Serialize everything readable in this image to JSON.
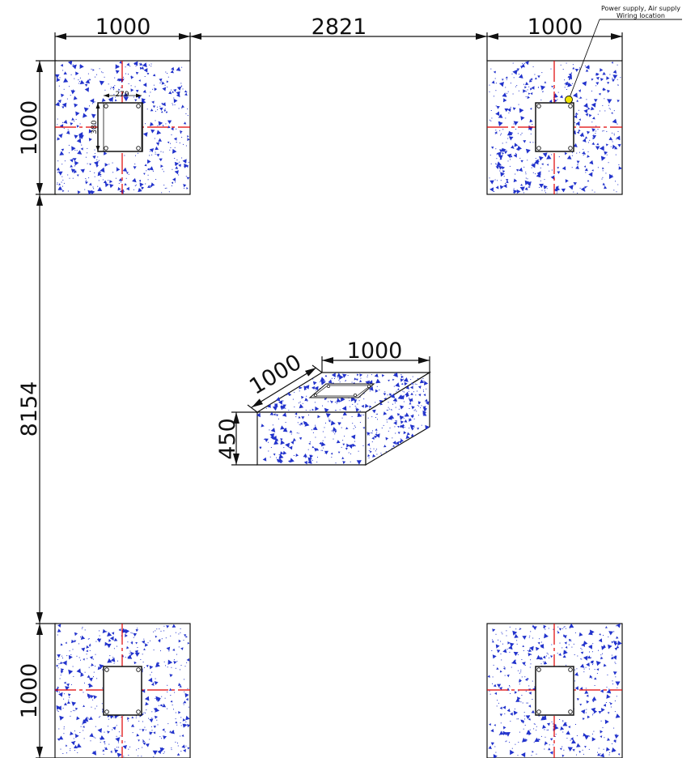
{
  "dimensions": {
    "top_left_width": "1000",
    "top_span": "2821",
    "top_right_width": "1000",
    "left_top_height": "1000",
    "left_span": "8154",
    "left_bottom_height": "1000",
    "center_depth": "1000",
    "center_width": "1000",
    "center_height": "450",
    "plate_width": "279",
    "plate_height": "380"
  },
  "annotation": {
    "line1": "Power supply, Air supply",
    "line2": "Wiring location"
  },
  "colors": {
    "line": "#111111",
    "centerline": "#e00000",
    "speckle": "#2233cc",
    "marker": "#f2e600"
  }
}
